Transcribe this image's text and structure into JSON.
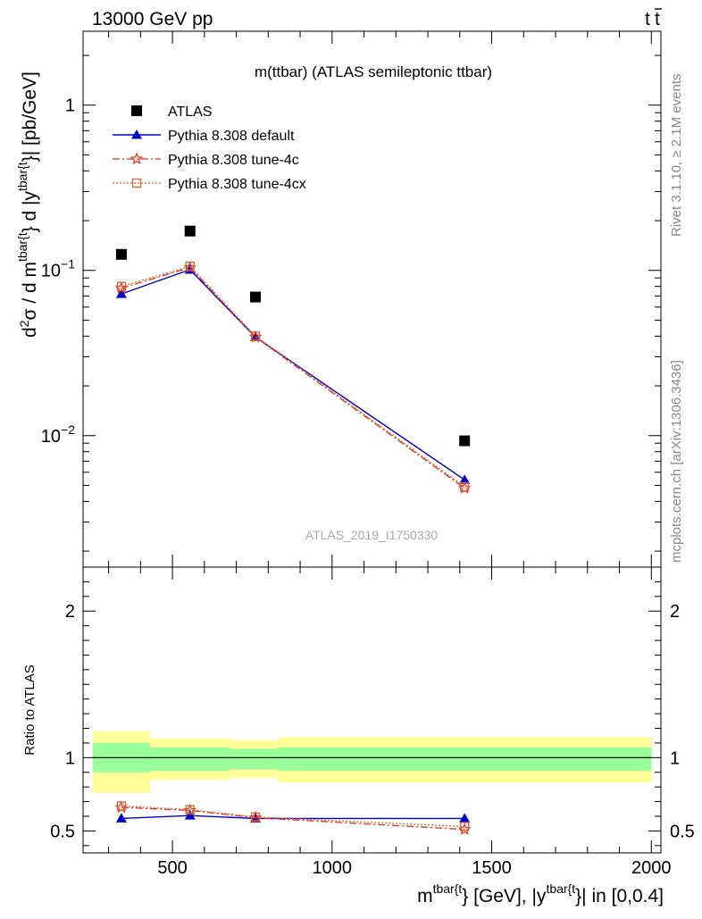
{
  "header": {
    "left": "13000 GeV pp",
    "right": "t",
    "right_bar": "t"
  },
  "side_labels": {
    "rivet": "Rivet 3.1.10, ≥ 2.1M events",
    "mcplots": "mcplots.cern.ch [arXiv:1306.3436]"
  },
  "watermark": "ATLAS_2019_I1750330",
  "colors": {
    "atlas": "#000000",
    "default": "#0000cc",
    "tune4c": "#dd3322",
    "tune4cx": "#cc6633",
    "band_inner": "#99ff99",
    "band_outer": "#ffff99"
  },
  "chart_data": [
    {
      "type": "scatter",
      "title": "m(ttbar) (ATLAS semileptonic ttbar)",
      "ylabel_parts": {
        "d": "d",
        "sup2": "2",
        "sigma": "σ / d m",
        "sup_a": "tbar{t",
        "mid": "} d |y",
        "sup_b": "tbar{t",
        "end": "}| [pb/GeV]"
      },
      "yscale": "log",
      "ylim": [
        0.0016,
        2.8
      ],
      "xlim": [
        220,
        2030
      ],
      "y_ticks": [
        {
          "value": 1,
          "label": "1"
        },
        {
          "value": 0.1,
          "base": "10",
          "exp": "−1"
        },
        {
          "value": 0.01,
          "base": "10",
          "exp": "−2"
        }
      ],
      "legend_placement": "top-left",
      "legend": [
        {
          "key": "atlas",
          "label": "ATLAS"
        },
        {
          "key": "default",
          "label": "Pythia 8.308 default"
        },
        {
          "key": "tune4c",
          "label": "Pythia 8.308 tune-4c"
        },
        {
          "key": "tune4cx",
          "label": "Pythia 8.308 tune-4cx"
        }
      ],
      "series": [
        {
          "key": "atlas",
          "name": "ATLAS",
          "x": [
            340,
            555,
            760,
            1415
          ],
          "y": [
            0.125,
            0.173,
            0.069,
            0.0093
          ]
        },
        {
          "key": "default",
          "name": "Pythia 8.308 default",
          "x": [
            340,
            555,
            760,
            1415
          ],
          "y": [
            0.072,
            0.101,
            0.0395,
            0.0054
          ]
        },
        {
          "key": "tune4c",
          "name": "Pythia 8.308 tune-4c",
          "x": [
            340,
            555,
            760,
            1415
          ],
          "y": [
            0.078,
            0.104,
            0.0395,
            0.0048
          ]
        },
        {
          "key": "tune4cx",
          "name": "Pythia 8.308 tune-4cx",
          "x": [
            340,
            555,
            760,
            1415
          ],
          "y": [
            0.08,
            0.106,
            0.04,
            0.0049
          ]
        }
      ]
    },
    {
      "type": "scatter",
      "ylabel": "Ratio to ATLAS",
      "xlabel_parts": {
        "m": "m",
        "sup_a": "tbar{t",
        "mid": "} [GeV], |y",
        "sup_b": "tbar{t",
        "end": "}| in [0,0.4]"
      },
      "xlim": [
        220,
        2030
      ],
      "ylim": [
        0.35,
        2.3
      ],
      "x_ticks": [
        500,
        1000,
        1500,
        2000
      ],
      "y_ticks": [
        0.5,
        1,
        2
      ],
      "reference_line": 1,
      "bands": [
        {
          "x0": 250,
          "x1": 430,
          "inner": [
            0.9,
            1.1
          ],
          "outer": [
            0.76,
            1.18
          ]
        },
        {
          "x0": 430,
          "x1": 680,
          "inner": [
            0.91,
            1.07
          ],
          "outer": [
            0.85,
            1.13
          ]
        },
        {
          "x0": 680,
          "x1": 830,
          "inner": [
            0.92,
            1.06
          ],
          "outer": [
            0.86,
            1.12
          ]
        },
        {
          "x0": 830,
          "x1": 2000,
          "inner": [
            0.91,
            1.07
          ],
          "outer": [
            0.83,
            1.14
          ]
        }
      ],
      "series": [
        {
          "key": "default",
          "name": "Pythia 8.308 default",
          "x": [
            340,
            555,
            760,
            1415
          ],
          "y": [
            0.585,
            0.605,
            0.585,
            0.585
          ]
        },
        {
          "key": "tune4c",
          "name": "Pythia 8.308 tune-4c",
          "x": [
            340,
            555,
            760,
            1415
          ],
          "y": [
            0.66,
            0.64,
            0.59,
            0.51
          ]
        },
        {
          "key": "tune4cx",
          "name": "Pythia 8.308 tune-4cx",
          "x": [
            340,
            555,
            760,
            1415
          ],
          "y": [
            0.67,
            0.645,
            0.595,
            0.53
          ]
        }
      ]
    }
  ]
}
